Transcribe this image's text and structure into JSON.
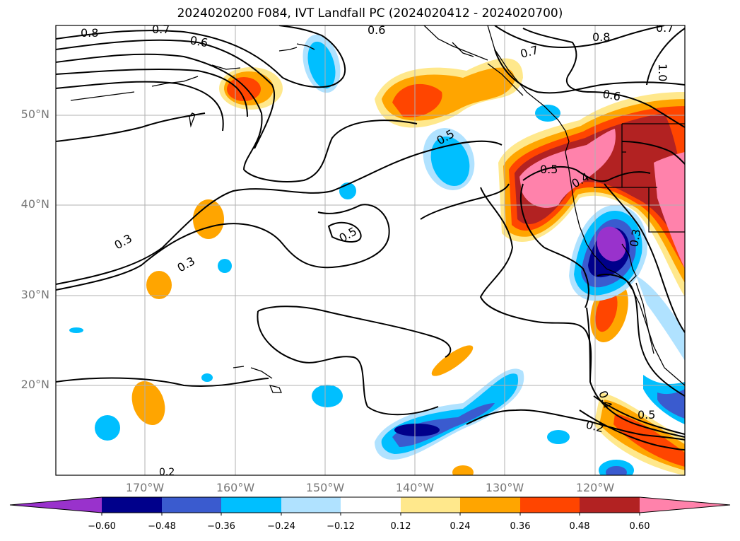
{
  "title": "2024020200 F084, IVT Landfall PC (2024020412 - 2024020700)",
  "lat_labels": [
    "50°N",
    "40°N",
    "30°N",
    "20°N"
  ],
  "lon_labels": [
    "170°W",
    "160°W",
    "150°W",
    "140°W",
    "130°W",
    "120°W"
  ],
  "contour_labels": [
    "0.8",
    "0.7",
    "0.6",
    "0.6",
    "0.8",
    "0.7",
    "0.7",
    "1.0",
    "0.6",
    "0.5",
    "0.5",
    "0.4",
    "0.3",
    "0.5",
    "0.3",
    "0.3",
    "0.4",
    "0.5",
    "0.2",
    "0.2"
  ],
  "colorbar": {
    "tick_labels": [
      "−0.60",
      "−0.48",
      "−0.36",
      "−0.24",
      "−0.12",
      "0.12",
      "0.24",
      "0.36",
      "0.48",
      "0.60"
    ],
    "colors": [
      "#9932cc",
      "#00008b",
      "#3a5bcf",
      "#00bfff",
      "#b0e2ff",
      "#ffffff",
      "#ffe88c",
      "#ffa500",
      "#ff4500",
      "#b22222",
      "#ff82ab"
    ]
  }
}
